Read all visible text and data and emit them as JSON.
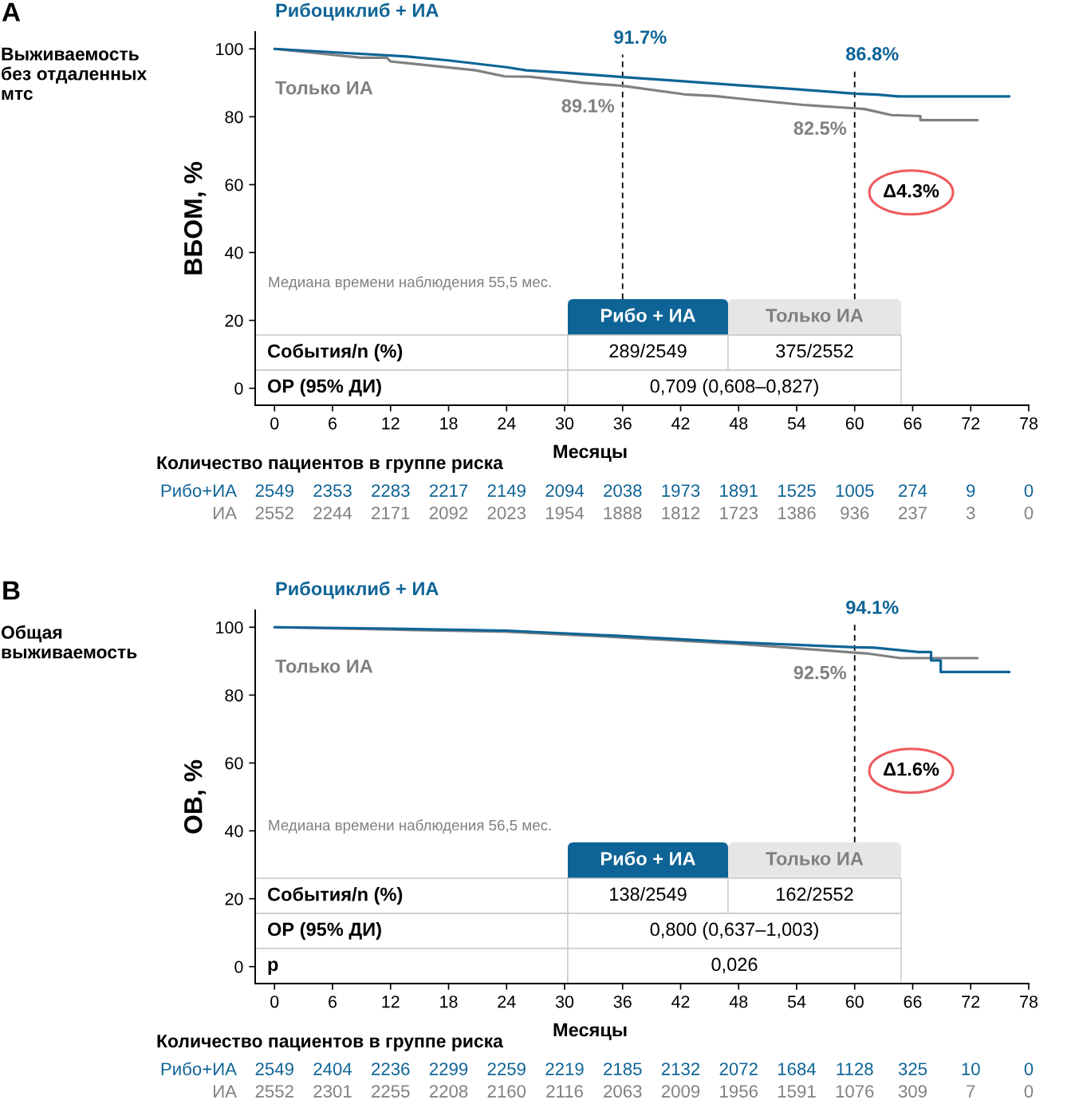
{
  "chart_data": [
    {
      "type": "line",
      "title": "Выживаемость без отдаленных мтс",
      "xlabel": "Месяцы",
      "ylabel": "ВБОМ, %",
      "xlim": [
        -2,
        78
      ],
      "ylim": [
        -5,
        105
      ],
      "xticks": [
        0,
        6,
        12,
        18,
        24,
        30,
        36,
        42,
        48,
        54,
        60,
        66,
        72,
        78
      ],
      "yticks": [
        0,
        20,
        40,
        60,
        80,
        100
      ],
      "line_style": "solid",
      "series": [
        {
          "name": "Рибоциклиб + ИА",
          "color": "#0e6496",
          "x": [
            0,
            6,
            13.5,
            18,
            24,
            26,
            30,
            36,
            42,
            48,
            54,
            60,
            62.4,
            64.5,
            76
          ],
          "values": [
            100,
            99.0,
            97.8,
            96.6,
            94.6,
            93.7,
            93.0,
            91.7,
            90.5,
            89.3,
            88.1,
            86.8,
            86.5,
            86.0,
            86.0
          ],
          "value_labels": [
            null,
            null,
            null,
            null,
            null,
            null,
            null,
            "91.7%",
            null,
            null,
            null,
            "86.8%",
            null,
            null,
            null
          ]
        },
        {
          "name": "Только ИА",
          "color": "#808080",
          "x": [
            0,
            9,
            11.6,
            12,
            20.8,
            23.8,
            26.4,
            32,
            36,
            42.4,
            45.5,
            48.6,
            54.7,
            60,
            61,
            63.8,
            66.8,
            66.8,
            72.7
          ],
          "values": [
            100,
            97.4,
            97.4,
            96.3,
            93.7,
            91.9,
            91.8,
            90.0,
            89.1,
            86.6,
            86.1,
            85.2,
            83.5,
            82.5,
            82.3,
            80.5,
            80.2,
            79.0,
            79.0
          ],
          "value_labels": [
            null,
            null,
            null,
            null,
            null,
            null,
            null,
            null,
            "89.1%",
            null,
            null,
            null,
            null,
            "82.5%",
            null,
            null,
            null,
            null,
            null
          ]
        }
      ],
      "ref_lines": [
        {
          "axis": "x",
          "value": 36,
          "line_style": "dashed",
          "color": "#000000"
        },
        {
          "axis": "x",
          "value": 60,
          "line_style": "dashed",
          "color": "#000000"
        }
      ],
      "annotations": [
        "A",
        "Медиана времени наблюдения 55,5 мес.",
        "Δ4.3%",
        "Рибо + ИА",
        "Только ИА",
        "События/n (%)",
        "289/2549",
        "375/2552",
        "ОР (95% ДИ)",
        "0,709 (0,608–0,827)",
        "Количество пациентов в группе риска",
        "Рибо+ИА",
        "ИА",
        "2549",
        "2353",
        "2283",
        "2217",
        "2149",
        "2094",
        "2038",
        "1973",
        "1891",
        "1525",
        "1005",
        "274",
        "9",
        "0",
        "2552",
        "2244",
        "2171",
        "2092",
        "2023",
        "1954",
        "1888",
        "1812",
        "1723",
        "1386",
        "936",
        "237",
        "3",
        "0"
      ]
    },
    {
      "type": "line",
      "title": "Общая выживаемость",
      "xlabel": "Месяцы",
      "ylabel": "ОВ, %",
      "xlim": [
        -2,
        78
      ],
      "ylim": [
        -5,
        105
      ],
      "xticks": [
        0,
        6,
        12,
        18,
        24,
        30,
        36,
        42,
        48,
        54,
        60,
        66,
        72,
        78
      ],
      "yticks": [
        0,
        20,
        40,
        60,
        80,
        100
      ],
      "line_style": "solid",
      "series": [
        {
          "name": "Рибоциклиб + ИА",
          "color": "#0e6496",
          "x": [
            0,
            12,
            24,
            27,
            36,
            48,
            60,
            62,
            66.6,
            67.9,
            67.9,
            68.9,
            68.9,
            76
          ],
          "values": [
            100,
            99.6,
            99.0,
            98.6,
            97.4,
            95.5,
            94.1,
            94.0,
            92.7,
            92.7,
            90.2,
            90.2,
            86.8,
            86.8
          ],
          "value_labels": [
            null,
            null,
            null,
            null,
            null,
            null,
            "94.1%",
            null,
            null,
            null,
            null,
            null,
            null,
            null
          ]
        },
        {
          "name": "Только ИА",
          "color": "#808080",
          "x": [
            0,
            12,
            24,
            36,
            48,
            60,
            61.5,
            64.7,
            72.7
          ],
          "values": [
            100,
            99.3,
            98.7,
            97.0,
            95.1,
            92.5,
            92.2,
            90.9,
            90.9
          ],
          "value_labels": [
            null,
            null,
            null,
            null,
            null,
            "92.5%",
            null,
            null,
            null
          ]
        }
      ],
      "ref_lines": [
        {
          "axis": "x",
          "value": 60,
          "line_style": "dashed",
          "color": "#000000"
        }
      ],
      "annotations": [
        "B",
        "Медиана времени наблюдения 56,5 мес.",
        "Δ1.6%",
        "Рибо + ИА",
        "Только ИА",
        "События/n (%)",
        "138/2549",
        "162/2552",
        "ОР (95% ДИ)",
        "0,800 (0,637–1,003)",
        "p",
        "0,026",
        "Количество пациентов в группе риска",
        "Рибо+ИА",
        "ИА",
        "2549",
        "2404",
        "2236",
        "2299",
        "2259",
        "2219",
        "2185",
        "2132",
        "2072",
        "1684",
        "1128",
        "325",
        "10",
        "0",
        "2552",
        "2301",
        "2255",
        "2208",
        "2160",
        "2116",
        "2063",
        "2009",
        "1956",
        "1591",
        "1076",
        "309",
        "7",
        "0"
      ]
    }
  ]
}
